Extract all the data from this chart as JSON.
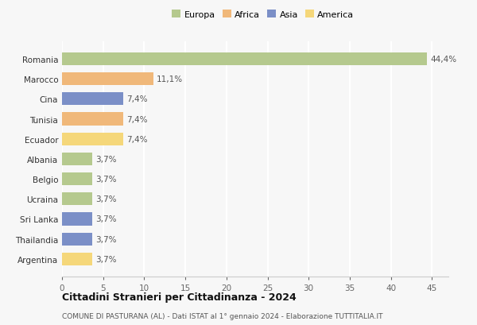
{
  "categories": [
    "Romania",
    "Marocco",
    "Cina",
    "Tunisia",
    "Ecuador",
    "Albania",
    "Belgio",
    "Ucraina",
    "Sri Lanka",
    "Thailandia",
    "Argentina"
  ],
  "values": [
    44.4,
    11.1,
    7.4,
    7.4,
    7.4,
    3.7,
    3.7,
    3.7,
    3.7,
    3.7,
    3.7
  ],
  "labels": [
    "44,4%",
    "11,1%",
    "7,4%",
    "7,4%",
    "7,4%",
    "3,7%",
    "3,7%",
    "3,7%",
    "3,7%",
    "3,7%",
    "3,7%"
  ],
  "bar_colors": [
    "#b5c98e",
    "#f0b87a",
    "#7b8fc7",
    "#f0b87a",
    "#f5d77a",
    "#b5c98e",
    "#b5c98e",
    "#b5c98e",
    "#7b8fc7",
    "#7b8fc7",
    "#f5d77a"
  ],
  "legend_labels": [
    "Europa",
    "Africa",
    "Asia",
    "America"
  ],
  "legend_colors": [
    "#b5c98e",
    "#f0b87a",
    "#7b8fc7",
    "#f5d77a"
  ],
  "title": "Cittadini Stranieri per Cittadinanza - 2024",
  "subtitle": "COMUNE DI PASTURANA (AL) - Dati ISTAT al 1° gennaio 2024 - Elaborazione TUTTITALIA.IT",
  "xlim": [
    0,
    47
  ],
  "xticks": [
    0,
    5,
    10,
    15,
    20,
    25,
    30,
    35,
    40,
    45
  ],
  "background_color": "#f7f7f7",
  "grid_color": "#ffffff",
  "bar_height": 0.65
}
